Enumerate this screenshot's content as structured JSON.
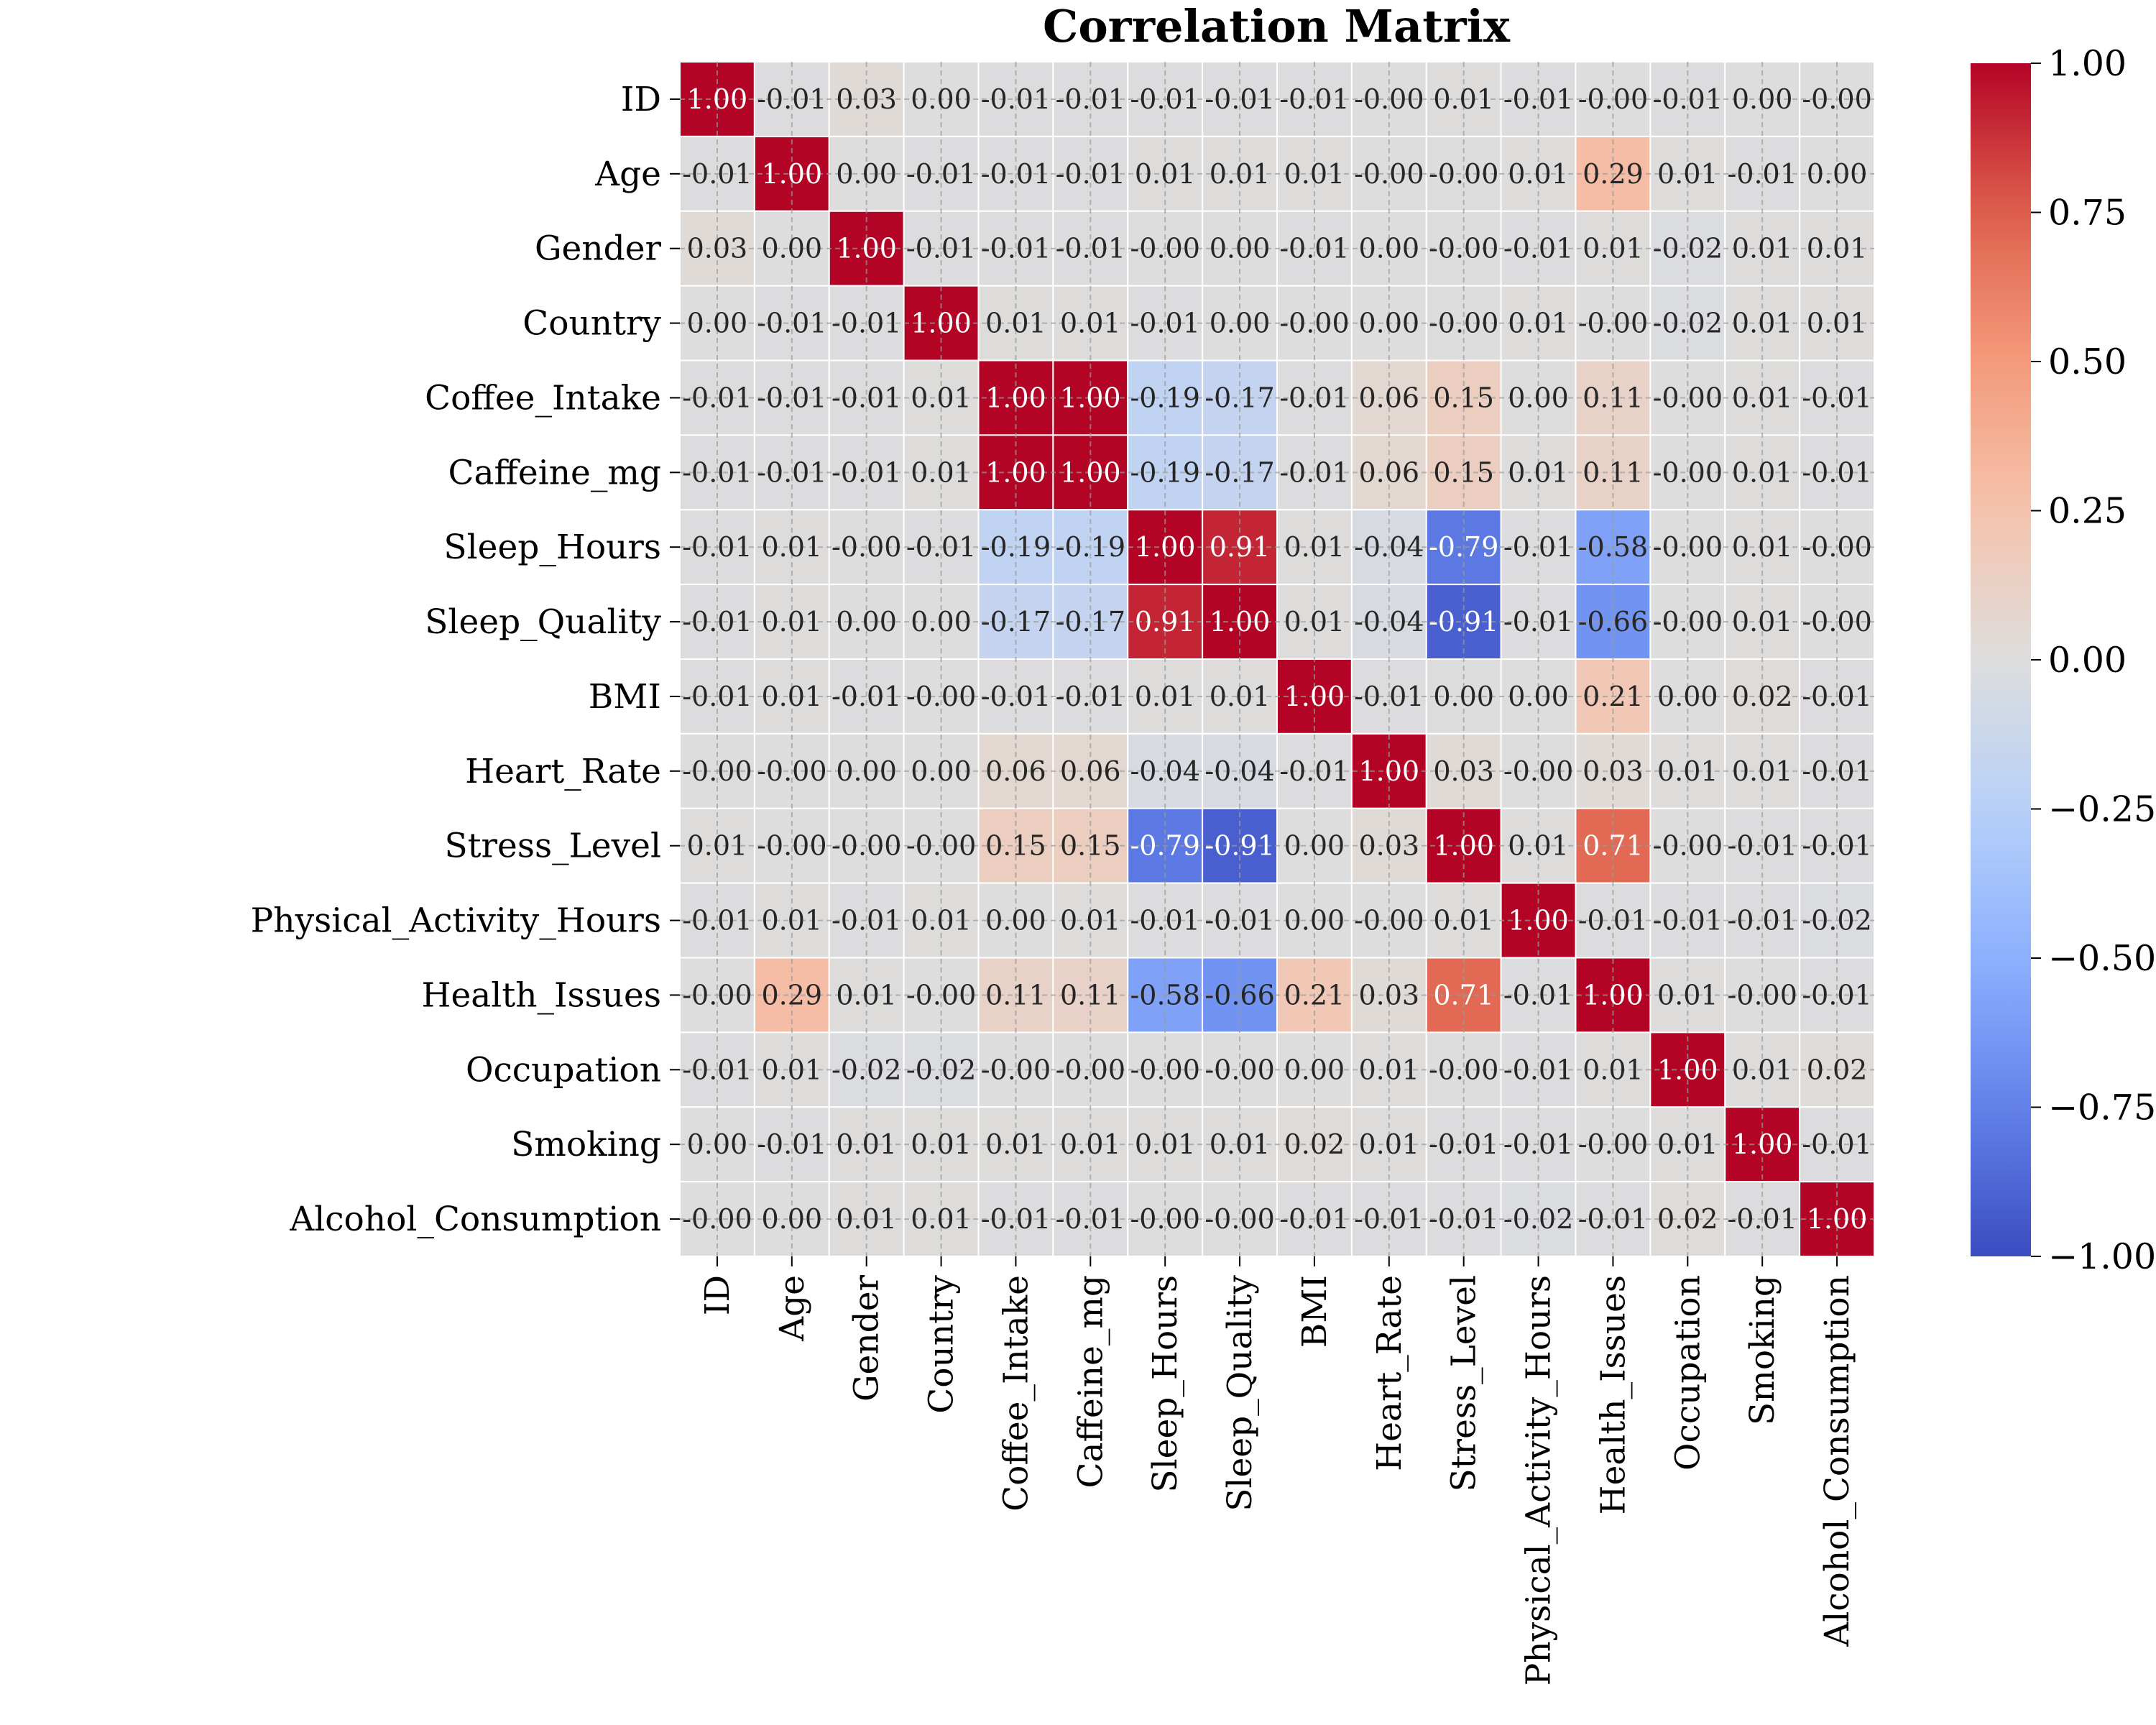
{
  "chart_data": {
    "type": "heatmap",
    "title": "Correlation Matrix",
    "xlabel": "",
    "ylabel": "",
    "labels": [
      "ID",
      "Age",
      "Gender",
      "Country",
      "Coffee_Intake",
      "Caffeine_mg",
      "Sleep_Hours",
      "Sleep_Quality",
      "BMI",
      "Heart_Rate",
      "Stress_Level",
      "Physical_Activity_Hours",
      "Health_Issues",
      "Occupation",
      "Smoking",
      "Alcohol_Consumption"
    ],
    "values": [
      [
        1.0,
        -0.01,
        0.03,
        0.0,
        -0.01,
        -0.01,
        -0.01,
        -0.01,
        -0.01,
        -0.0,
        0.01,
        -0.01,
        -0.0,
        -0.01,
        0.0,
        -0.0
      ],
      [
        -0.01,
        1.0,
        0.0,
        -0.01,
        -0.01,
        -0.01,
        0.01,
        0.01,
        0.01,
        -0.0,
        -0.0,
        0.01,
        0.29,
        0.01,
        -0.01,
        0.0
      ],
      [
        0.03,
        0.0,
        1.0,
        -0.01,
        -0.01,
        -0.01,
        -0.0,
        0.0,
        -0.01,
        0.0,
        -0.0,
        -0.01,
        0.01,
        -0.02,
        0.01,
        0.01
      ],
      [
        0.0,
        -0.01,
        -0.01,
        1.0,
        0.01,
        0.01,
        -0.01,
        0.0,
        -0.0,
        0.0,
        -0.0,
        0.01,
        -0.0,
        -0.02,
        0.01,
        0.01
      ],
      [
        -0.01,
        -0.01,
        -0.01,
        0.01,
        1.0,
        1.0,
        -0.19,
        -0.17,
        -0.01,
        0.06,
        0.15,
        0.0,
        0.11,
        -0.0,
        0.01,
        -0.01
      ],
      [
        -0.01,
        -0.01,
        -0.01,
        0.01,
        1.0,
        1.0,
        -0.19,
        -0.17,
        -0.01,
        0.06,
        0.15,
        0.01,
        0.11,
        -0.0,
        0.01,
        -0.01
      ],
      [
        -0.01,
        0.01,
        -0.0,
        -0.01,
        -0.19,
        -0.19,
        1.0,
        0.91,
        0.01,
        -0.04,
        -0.79,
        -0.01,
        -0.58,
        -0.0,
        0.01,
        -0.0
      ],
      [
        -0.01,
        0.01,
        0.0,
        0.0,
        -0.17,
        -0.17,
        0.91,
        1.0,
        0.01,
        -0.04,
        -0.91,
        -0.01,
        -0.66,
        -0.0,
        0.01,
        -0.0
      ],
      [
        -0.01,
        0.01,
        -0.01,
        -0.0,
        -0.01,
        -0.01,
        0.01,
        0.01,
        1.0,
        -0.01,
        0.0,
        0.0,
        0.21,
        0.0,
        0.02,
        -0.01
      ],
      [
        -0.0,
        -0.0,
        0.0,
        0.0,
        0.06,
        0.06,
        -0.04,
        -0.04,
        -0.01,
        1.0,
        0.03,
        -0.0,
        0.03,
        0.01,
        0.01,
        -0.01
      ],
      [
        0.01,
        -0.0,
        -0.0,
        -0.0,
        0.15,
        0.15,
        -0.79,
        -0.91,
        0.0,
        0.03,
        1.0,
        0.01,
        0.71,
        -0.0,
        -0.01,
        -0.01
      ],
      [
        -0.01,
        0.01,
        -0.01,
        0.01,
        0.0,
        0.01,
        -0.01,
        -0.01,
        0.0,
        -0.0,
        0.01,
        1.0,
        -0.01,
        -0.01,
        -0.01,
        -0.02
      ],
      [
        -0.0,
        0.29,
        0.01,
        -0.0,
        0.11,
        0.11,
        -0.58,
        -0.66,
        0.21,
        0.03,
        0.71,
        -0.01,
        1.0,
        0.01,
        -0.0,
        -0.01
      ],
      [
        -0.01,
        0.01,
        -0.02,
        -0.02,
        -0.0,
        -0.0,
        -0.0,
        -0.0,
        0.0,
        0.01,
        -0.0,
        -0.01,
        0.01,
        1.0,
        0.01,
        0.02
      ],
      [
        0.0,
        -0.01,
        0.01,
        0.01,
        0.01,
        0.01,
        0.01,
        0.01,
        0.02,
        0.01,
        -0.01,
        -0.01,
        -0.0,
        0.01,
        1.0,
        -0.01
      ],
      [
        -0.0,
        0.0,
        0.01,
        0.01,
        -0.01,
        -0.01,
        -0.0,
        -0.0,
        -0.01,
        -0.01,
        -0.01,
        -0.02,
        -0.01,
        0.02,
        -0.01,
        1.0
      ]
    ],
    "value_format": "2 decimals",
    "colorbar": {
      "colormap": "coolwarm",
      "vmin": -1.0,
      "vmax": 1.0,
      "ticks": [
        1.0,
        0.75,
        0.5,
        0.25,
        0.0,
        -0.25,
        -0.5,
        -0.75,
        -1.0
      ],
      "tick_labels": [
        "1.00",
        "0.75",
        "0.50",
        "0.25",
        "0.00",
        "−0.25",
        "−0.50",
        "−0.75",
        "−1.00"
      ]
    },
    "grid": true,
    "cell_borders": "white",
    "legend": "colorbar right"
  }
}
